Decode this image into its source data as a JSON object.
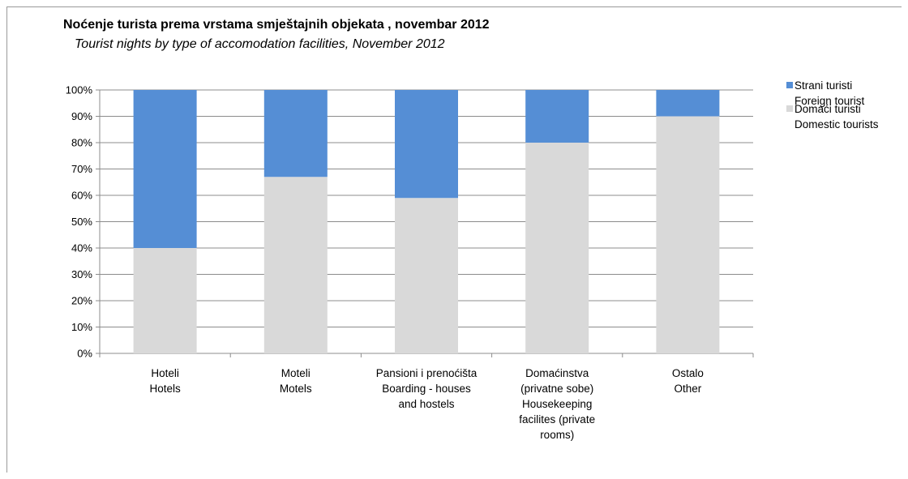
{
  "title": "Noćenje turista prema vrstama smještajnih objekata , novembar 2012",
  "subtitle": "Tourist nights by type of accomodation facilities,  November 2012",
  "legend": [
    {
      "lines": [
        "Strani turisti",
        "Foreign tourist"
      ],
      "color": "#558ed5"
    },
    {
      "lines": [
        "Domaći turisti",
        "Domestic tourists"
      ],
      "color": "#d9d9d9"
    }
  ],
  "chart_data": {
    "type": "bar",
    "stacked": true,
    "percent": true,
    "title": "Noćenje turista prema vrstama smještajnih objekata , novembar 2012",
    "subtitle": "Tourist nights by type of accomodation facilities,  November 2012",
    "categories": [
      [
        "Hoteli",
        "Hotels"
      ],
      [
        "Moteli",
        "Motels"
      ],
      [
        "Pansioni  i  prenoćišta",
        "Boarding - houses",
        "and hostels"
      ],
      [
        "Domaćinstva",
        "(privatne sobe)",
        "Housekeeping",
        "facilites (private",
        "rooms)"
      ],
      [
        "Ostalo",
        "Other"
      ]
    ],
    "series": [
      {
        "name": "Domaći turisti / Domestic tourists",
        "color": "#d9d9d9",
        "values": [
          40,
          67,
          59,
          80,
          90
        ]
      },
      {
        "name": "Strani turisti / Foreign tourist",
        "color": "#558ed5",
        "values": [
          60,
          33,
          41,
          20,
          10
        ]
      }
    ],
    "yticks": [
      "0%",
      "10%",
      "20%",
      "30%",
      "40%",
      "50%",
      "60%",
      "70%",
      "80%",
      "90%",
      "100%"
    ],
    "ylim": [
      0,
      100
    ],
    "grid": true,
    "legend_position": "right"
  }
}
